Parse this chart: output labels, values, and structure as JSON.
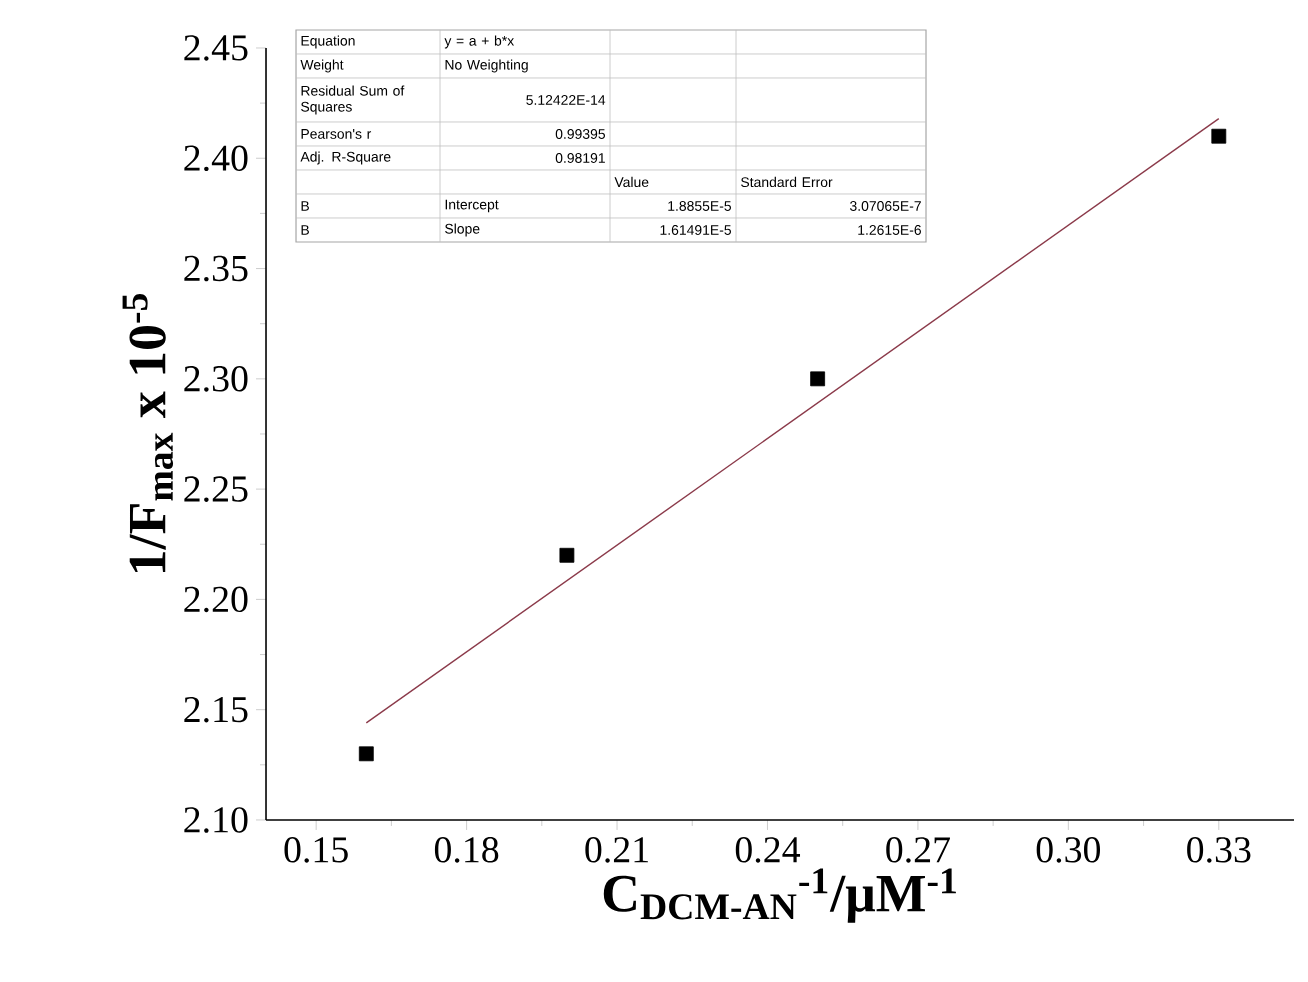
{
  "chart_data": {
    "type": "scatter",
    "xlabel": "C$_{DCM-AN}$$^{-1}$/μM$^{-1}$",
    "ylabel": "1/F$_{max}$ x 10$^{-5}$",
    "xlim": [
      0.14,
      0.345
    ],
    "ylim": [
      2.1,
      2.45
    ],
    "xticks": [
      {
        "value": 0.15,
        "label": "0.15"
      },
      {
        "value": 0.18,
        "label": "0.18"
      },
      {
        "value": 0.21,
        "label": "0.21"
      },
      {
        "value": 0.24,
        "label": "0.24"
      },
      {
        "value": 0.27,
        "label": "0.27"
      },
      {
        "value": 0.3,
        "label": "0.30"
      },
      {
        "value": 0.33,
        "label": "0.33"
      }
    ],
    "yticks": [
      {
        "value": 2.1,
        "label": "2.10"
      },
      {
        "value": 2.15,
        "label": "2.15"
      },
      {
        "value": 2.2,
        "label": "2.20"
      },
      {
        "value": 2.25,
        "label": "2.25"
      },
      {
        "value": 2.3,
        "label": "2.30"
      },
      {
        "value": 2.35,
        "label": "2.35"
      },
      {
        "value": 2.4,
        "label": "2.40"
      },
      {
        "value": 2.45,
        "label": "2.45"
      }
    ],
    "grid": false,
    "series": [
      {
        "color": "#000000",
        "marker": "square",
        "x": [
          0.16,
          0.2,
          0.25,
          0.33
        ],
        "values": [
          2.13,
          2.22,
          2.3,
          2.41
        ]
      },
      {
        "type": "line",
        "color": "#8b3a4a",
        "marker": "none",
        "x": [
          0.16,
          0.33
        ],
        "values": [
          2.144,
          2.418
        ]
      }
    ],
    "annotations": [
      "Equation",
      "y = a + b*x",
      "Weight",
      "No Weighting",
      "Residual Sum of Squares",
      "5.12422E-14",
      "Pearson's r",
      "0.99395",
      "Adj. R-Square",
      "0.98191",
      "Value",
      "Standard Error",
      "B",
      "Intercept",
      "1.8855E-5",
      "3.07065E-7",
      "B",
      "Slope",
      "1.61491E-5",
      "1.2615E-6"
    ]
  }
}
